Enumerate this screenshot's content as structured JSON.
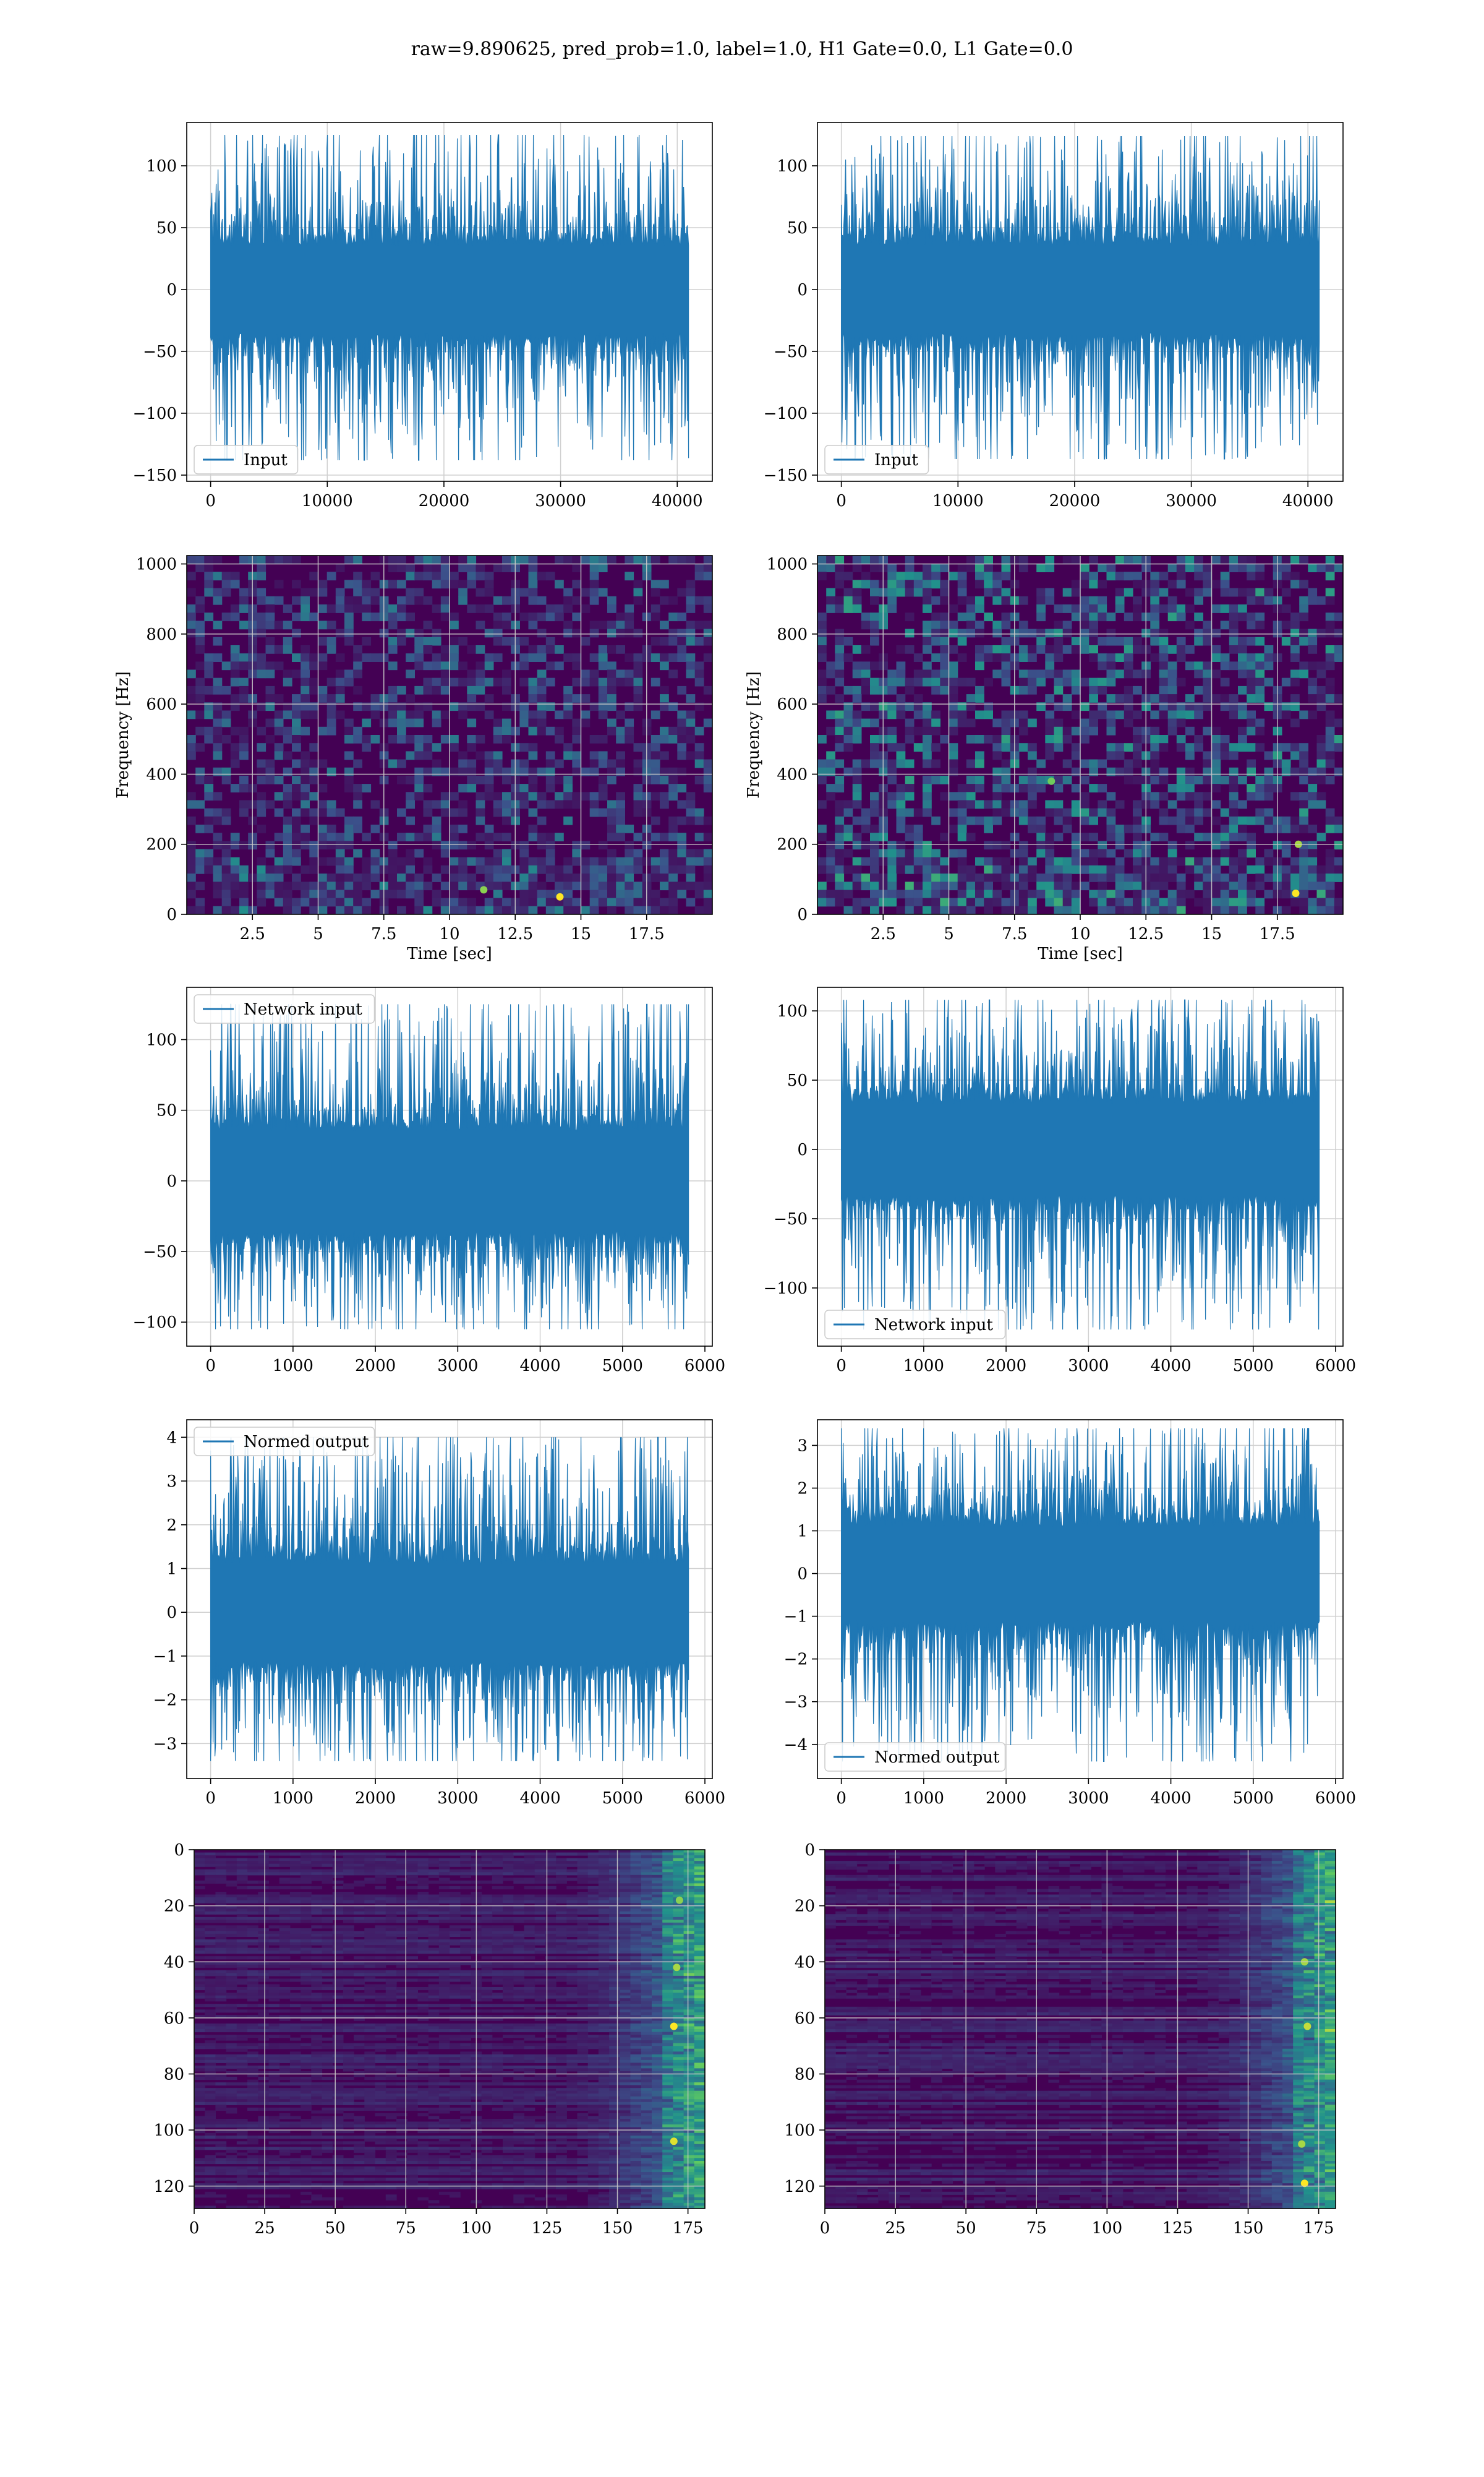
{
  "figure": {
    "suptitle": "raw=9.890625, pred_prob=1.0, label=1.0, H1 Gate=0.0, L1 Gate=0.0"
  },
  "colors": {
    "line": "#1f77b4",
    "grid": "#d0d0d0",
    "viridis_dark": "#440154",
    "viridis_mid": "#21918c",
    "viridis_bright": "#fde725"
  },
  "chart_data": [
    {
      "id": "h1-input",
      "type": "line",
      "series": [
        {
          "name": "Input",
          "envelope_hi": 125,
          "envelope_lo": -138,
          "core": 32
        }
      ],
      "x_range": [
        0,
        40960
      ],
      "xlim": [
        -2048,
        43008
      ],
      "xticks": [
        0,
        10000,
        20000,
        30000,
        40000
      ],
      "ylim": [
        -155,
        135
      ],
      "yticks": [
        -150,
        -100,
        -50,
        0,
        50,
        100
      ],
      "xlabel": "",
      "ylabel": "",
      "grid": true,
      "legend": "lower left"
    },
    {
      "id": "l1-input",
      "type": "line",
      "series": [
        {
          "name": "Input",
          "envelope_hi": 124,
          "envelope_lo": -137,
          "core": 32
        }
      ],
      "x_range": [
        0,
        40960
      ],
      "xlim": [
        -2048,
        43008
      ],
      "xticks": [
        0,
        10000,
        20000,
        30000,
        40000
      ],
      "ylim": [
        -155,
        135
      ],
      "yticks": [
        -150,
        -100,
        -50,
        0,
        50,
        100
      ],
      "xlabel": "",
      "ylabel": "",
      "grid": true,
      "legend": "lower left"
    },
    {
      "id": "h1-spectrogram",
      "type": "heatmap",
      "xlim": [
        0,
        20
      ],
      "xticks": [
        2.5,
        5.0,
        7.5,
        10.0,
        12.5,
        15.0,
        17.5
      ],
      "ylim": [
        0,
        1024
      ],
      "yticks": [
        0,
        200,
        400,
        600,
        800,
        1000
      ],
      "xlabel": "Time [sec]",
      "ylabel": "Frequency [Hz]",
      "grid": true,
      "colormap": "viridis",
      "hotspots": [
        {
          "x": 14.2,
          "y": 50,
          "intensity": 1.0
        },
        {
          "x": 11.3,
          "y": 70,
          "intensity": 0.6
        }
      ]
    },
    {
      "id": "l1-spectrogram",
      "type": "heatmap",
      "xlim": [
        0,
        20
      ],
      "xticks": [
        2.5,
        5.0,
        7.5,
        10.0,
        12.5,
        15.0,
        17.5
      ],
      "ylim": [
        0,
        1024
      ],
      "yticks": [
        0,
        200,
        400,
        600,
        800,
        1000
      ],
      "xlabel": "Time [sec]",
      "ylabel": "Frequency [Hz]",
      "grid": true,
      "colormap": "viridis",
      "hotspots": [
        {
          "x": 18.2,
          "y": 60,
          "intensity": 1.0
        },
        {
          "x": 18.3,
          "y": 200,
          "intensity": 0.7
        },
        {
          "x": 8.9,
          "y": 380,
          "intensity": 0.5
        }
      ]
    },
    {
      "id": "h1-network-input",
      "type": "line",
      "series": [
        {
          "name": "Network input",
          "envelope_hi": 125,
          "envelope_lo": -105,
          "core": 32
        }
      ],
      "x_range": [
        0,
        5800
      ],
      "xlim": [
        -290,
        6090
      ],
      "xticks": [
        0,
        1000,
        2000,
        3000,
        4000,
        5000,
        6000
      ],
      "ylim": [
        -117,
        137
      ],
      "yticks": [
        -100,
        -50,
        0,
        50,
        100
      ],
      "xlabel": "",
      "ylabel": "",
      "grid": true,
      "legend": "upper left"
    },
    {
      "id": "l1-network-input",
      "type": "line",
      "series": [
        {
          "name": "Network input",
          "envelope_hi": 108,
          "envelope_lo": -130,
          "core": 30
        }
      ],
      "x_range": [
        0,
        5800
      ],
      "xlim": [
        -290,
        6090
      ],
      "xticks": [
        0,
        1000,
        2000,
        3000,
        4000,
        5000,
        6000
      ],
      "ylim": [
        -142,
        117
      ],
      "yticks": [
        -100,
        -50,
        0,
        50,
        100
      ],
      "xlabel": "",
      "ylabel": "",
      "grid": true,
      "legend": "lower left"
    },
    {
      "id": "h1-normed-output",
      "type": "line",
      "series": [
        {
          "name": "Normed output",
          "envelope_hi": 4.0,
          "envelope_lo": -3.4,
          "core": 1.0
        }
      ],
      "x_range": [
        0,
        5800
      ],
      "xlim": [
        -290,
        6090
      ],
      "xticks": [
        0,
        1000,
        2000,
        3000,
        4000,
        5000,
        6000
      ],
      "ylim": [
        -3.8,
        4.4
      ],
      "yticks": [
        -3,
        -2,
        -1,
        0,
        1,
        2,
        3,
        4
      ],
      "xlabel": "",
      "ylabel": "",
      "grid": true,
      "legend": "upper left"
    },
    {
      "id": "l1-normed-output",
      "type": "line",
      "series": [
        {
          "name": "Normed output",
          "envelope_hi": 3.4,
          "envelope_lo": -4.4,
          "core": 1.0
        }
      ],
      "x_range": [
        0,
        5800
      ],
      "xlim": [
        -290,
        6090
      ],
      "xticks": [
        0,
        1000,
        2000,
        3000,
        4000,
        5000,
        6000
      ],
      "ylim": [
        -4.8,
        3.6
      ],
      "yticks": [
        -4,
        -3,
        -2,
        -1,
        0,
        1,
        2,
        3
      ],
      "xlabel": "",
      "ylabel": "",
      "grid": true,
      "legend": "lower left"
    },
    {
      "id": "h1-feature-map",
      "type": "heatmap",
      "xlim": [
        0,
        181
      ],
      "xticks": [
        0,
        25,
        50,
        75,
        100,
        125,
        150,
        175
      ],
      "ylim": [
        128,
        0
      ],
      "yticks": [
        0,
        20,
        40,
        60,
        80,
        100,
        120
      ],
      "xlabel": "",
      "ylabel": "",
      "grid": true,
      "colormap": "viridis",
      "hotspots": [
        {
          "x": 170,
          "y": 63,
          "intensity": 1.0
        },
        {
          "x": 170,
          "y": 104,
          "intensity": 0.9
        },
        {
          "x": 171,
          "y": 42,
          "intensity": 0.7
        },
        {
          "x": 172,
          "y": 18,
          "intensity": 0.6
        }
      ]
    },
    {
      "id": "l1-feature-map",
      "type": "heatmap",
      "xlim": [
        0,
        181
      ],
      "xticks": [
        0,
        25,
        50,
        75,
        100,
        125,
        150,
        175
      ],
      "ylim": [
        128,
        0
      ],
      "yticks": [
        0,
        20,
        40,
        60,
        80,
        100,
        120
      ],
      "xlabel": "",
      "ylabel": "",
      "grid": true,
      "colormap": "viridis",
      "hotspots": [
        {
          "x": 170,
          "y": 119,
          "intensity": 1.0
        },
        {
          "x": 171,
          "y": 63,
          "intensity": 0.8
        },
        {
          "x": 170,
          "y": 40,
          "intensity": 0.7
        },
        {
          "x": 169,
          "y": 105,
          "intensity": 0.7
        }
      ]
    }
  ]
}
